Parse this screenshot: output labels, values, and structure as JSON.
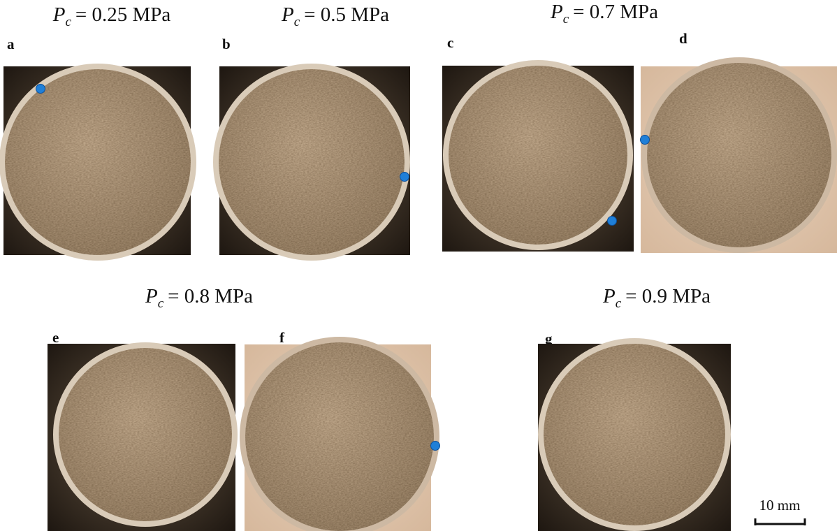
{
  "groups": [
    {
      "symbol": "P",
      "subscript": "c",
      "equation": "= 0.25 MPa",
      "panels": [
        "a"
      ]
    },
    {
      "symbol": "P",
      "subscript": "c",
      "equation": "= 0.5 MPa",
      "panels": [
        "b"
      ]
    },
    {
      "symbol": "P",
      "subscript": "c",
      "equation": "= 0.7 MPa",
      "panels": [
        "c",
        "d"
      ]
    },
    {
      "symbol": "P",
      "subscript": "c",
      "equation": "= 0.8 MPa",
      "panels": [
        "e",
        "f"
      ]
    },
    {
      "symbol": "P",
      "subscript": "c",
      "equation": "= 0.9 MPa",
      "panels": [
        "g"
      ]
    }
  ],
  "scale_bar": "10 mm"
}
